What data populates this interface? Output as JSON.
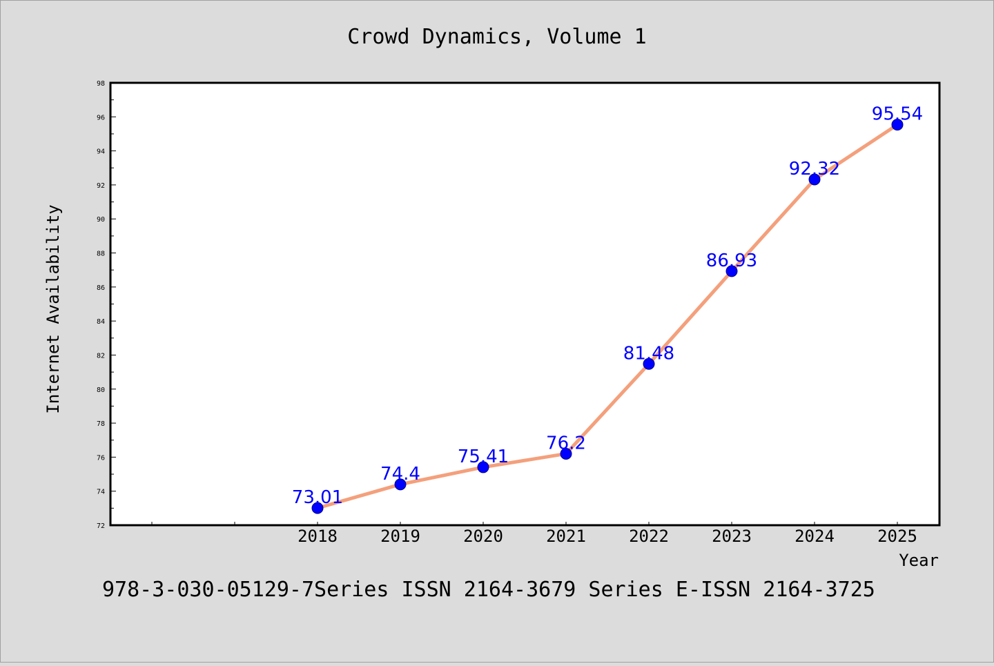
{
  "chart_data": {
    "type": "line",
    "title": "Crowd Dynamics, Volume 1",
    "xlabel": "Year",
    "ylabel": "Internet Availability",
    "categories": [
      "2018",
      "2019",
      "2020",
      "2021",
      "2022",
      "2023",
      "2024",
      "2025"
    ],
    "series": [
      {
        "values": [
          73.01,
          74.4,
          75.41,
          76.2,
          81.48,
          86.93,
          92.32,
          95.54
        ],
        "data_labels": [
          "73.01",
          "74.4",
          "75.41",
          "76.2",
          "81.48",
          "86.93",
          "92.32",
          "95.54"
        ]
      }
    ],
    "ylim": [
      72,
      98
    ],
    "yticks": [
      "72",
      "74",
      "76",
      "78",
      "80",
      "82",
      "84",
      "86",
      "88",
      "90",
      "92",
      "94",
      "96",
      "98"
    ],
    "grid": false,
    "legend": "none",
    "colors": {
      "line": "#f4a07c",
      "marker": "#0000ff",
      "label": "#0000ff",
      "plot_bg": "#ffffff",
      "page_bg": "#dcdcdc"
    }
  },
  "footer": {
    "text": "978-3-030-05129-7Series ISSN 2164-3679 Series E-ISSN 2164-3725"
  }
}
